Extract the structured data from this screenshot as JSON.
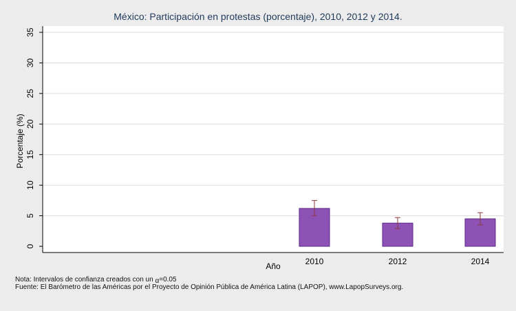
{
  "chart_data": {
    "type": "bar",
    "title": "México: Participación en protestas (porcentaje), 2010, 2012 y 2014.",
    "xlabel": "Año",
    "ylabel": "Porcentaje (%)",
    "ylim": [
      0,
      36
    ],
    "yticks": [
      0,
      5,
      10,
      15,
      20,
      25,
      30,
      35
    ],
    "grid": true,
    "categories": [
      "2010",
      "2012",
      "2014"
    ],
    "values": [
      6.2,
      3.8,
      4.5
    ],
    "ci_lower": [
      5.0,
      2.9,
      3.5
    ],
    "ci_upper": [
      7.5,
      4.7,
      5.5
    ],
    "colors": {
      "bar_fill": "#8c52b5",
      "bar_stroke": "#5e2a86",
      "error_bar": "#8b3a3a",
      "grid": "#dcdcdc",
      "plot_bg": "#ffffff",
      "page_bg": "#ececec"
    }
  },
  "footer": {
    "note_prefix": "Nota: Intervalos de confianza creados con un ",
    "note_symbol": "α",
    "note_suffix": "=0.05",
    "source": "Fuente: El Barómetro de las Américas por el Proyecto de Opinión Pública de América Latina (LAPOP), www.LapopSurveys.org."
  }
}
